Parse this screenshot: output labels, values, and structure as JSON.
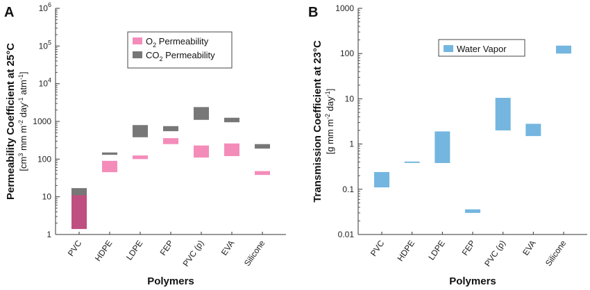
{
  "chart_data": [
    {
      "panel_label": "A",
      "type": "bar",
      "scale": "log",
      "ylim": [
        1,
        1000000
      ],
      "ylabel_line1": "Permeability Coefficient at 25°C",
      "ylabel_line2_parts": [
        "[cm",
        "3",
        " mm m",
        "-2",
        " day",
        "-1",
        " atm",
        "-1",
        "]"
      ],
      "xlabel": "Polymers",
      "ytick_labels": [
        "1",
        "10",
        "100",
        "1000"
      ],
      "ytick_sup_labels": [
        {
          "value": 10000,
          "base": "10",
          "exp": "4"
        },
        {
          "value": 100000,
          "base": "10",
          "exp": "5"
        },
        {
          "value": 1000000,
          "base": "10",
          "exp": "6"
        }
      ],
      "categories": [
        "PVC",
        "HDPE",
        "LDPE",
        "FEP",
        "PVC (p)",
        "EVA",
        "Silicone"
      ],
      "legend": {
        "items": [
          {
            "base": "O",
            "sub": "2",
            "rest": " Permeability",
            "color": "#f48cba"
          },
          {
            "base": "CO",
            "sub": "2",
            "rest": " Permeability",
            "color": "#777777"
          }
        ]
      },
      "series": [
        {
          "name": "O2 Permeability",
          "color": "#f48cba",
          "ranges": [
            [
              1.4,
              11
            ],
            [
              45,
              90
            ],
            [
              100,
              125
            ],
            [
              250,
              360
            ],
            [
              110,
              230
            ],
            [
              120,
              260
            ],
            [
              38,
              48
            ]
          ]
        },
        {
          "name": "CO2 Permeability",
          "color": "#777777",
          "ranges": [
            [
              10,
              17
            ],
            [
              130,
              150
            ],
            [
              380,
              800
            ],
            [
              550,
              750
            ],
            [
              1100,
              2400
            ],
            [
              950,
              1250
            ],
            [
              190,
              250
            ]
          ]
        }
      ],
      "overlap_color": "#bf4f80"
    },
    {
      "panel_label": "B",
      "type": "bar",
      "scale": "log",
      "ylim": [
        0.01,
        1000
      ],
      "ylabel_line1": "Transmission Coefficient at 23°C",
      "ylabel_line2_parts": [
        "[g mm m",
        "-2",
        " day",
        "-1",
        "]"
      ],
      "xlabel": "Polymers",
      "ytick_labels": [
        "0.01",
        "0.1",
        "1",
        "10",
        "100",
        "1000"
      ],
      "categories": [
        "PVC",
        "HDPE",
        "LDPE",
        "FEP",
        "PVC (p)",
        "EVA",
        "Silicone"
      ],
      "legend": {
        "items": [
          {
            "label": "Water Vapor",
            "color": "#74b6e0"
          }
        ]
      },
      "series": [
        {
          "name": "Water Vapor",
          "color": "#74b6e0",
          "ranges": [
            [
              0.11,
              0.24
            ],
            [
              0.39,
              0.41
            ],
            [
              0.38,
              1.9
            ],
            [
              0.03,
              0.036
            ],
            [
              2.0,
              10.5
            ],
            [
              1.5,
              2.8
            ],
            [
              100,
              150
            ]
          ]
        }
      ]
    }
  ]
}
